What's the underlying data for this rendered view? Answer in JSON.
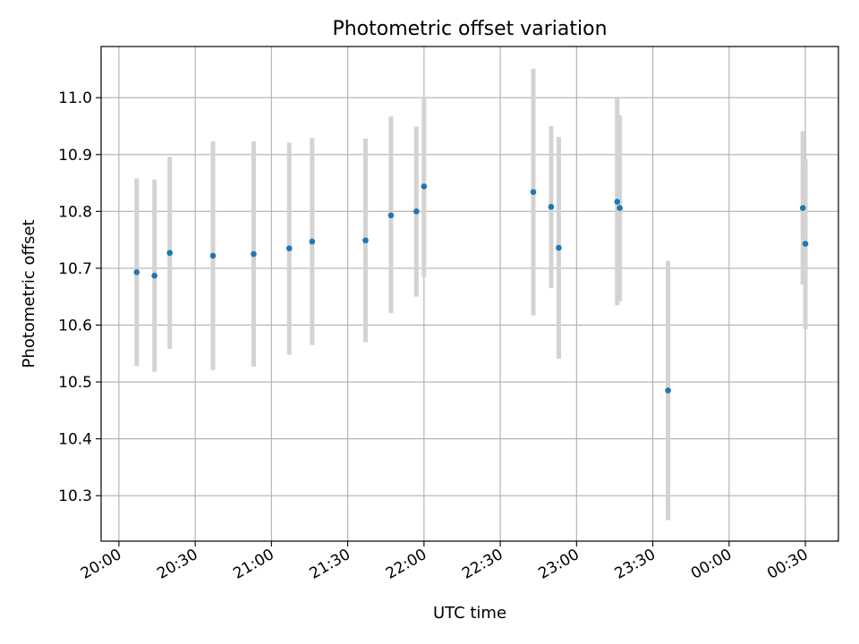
{
  "chart_data": {
    "type": "scatter",
    "title": "Photometric offset variation",
    "xlabel": "UTC time",
    "ylabel": "Photometric offset",
    "x_ticks": [
      "20:00",
      "20:30",
      "21:00",
      "21:30",
      "22:00",
      "22:30",
      "23:00",
      "23:30",
      "00:00",
      "00:30"
    ],
    "y_ticks": [
      "10.3",
      "10.4",
      "10.5",
      "10.6",
      "10.7",
      "10.8",
      "10.9",
      "11.0"
    ],
    "ylim": [
      10.22,
      11.09
    ],
    "xlim": [
      "19:53",
      "00:43"
    ],
    "grid": true,
    "colors": {
      "point": "#1f77b4",
      "errorbar": "#d3d3d3",
      "grid": "#b0b0b0"
    },
    "points": [
      {
        "time": "20:07",
        "value": 10.693,
        "err_low": 10.528,
        "err_high": 10.858
      },
      {
        "time": "20:14",
        "value": 10.687,
        "err_low": 10.518,
        "err_high": 10.856
      },
      {
        "time": "20:20",
        "value": 10.727,
        "err_low": 10.558,
        "err_high": 10.896
      },
      {
        "time": "20:37",
        "value": 10.722,
        "err_low": 10.521,
        "err_high": 10.923
      },
      {
        "time": "20:53",
        "value": 10.725,
        "err_low": 10.527,
        "err_high": 10.923
      },
      {
        "time": "21:07",
        "value": 10.735,
        "err_low": 10.548,
        "err_high": 10.921
      },
      {
        "time": "21:16",
        "value": 10.747,
        "err_low": 10.565,
        "err_high": 10.929
      },
      {
        "time": "21:37",
        "value": 10.749,
        "err_low": 10.57,
        "err_high": 10.928
      },
      {
        "time": "21:47",
        "value": 10.793,
        "err_low": 10.621,
        "err_high": 10.967
      },
      {
        "time": "21:57",
        "value": 10.8,
        "err_low": 10.65,
        "err_high": 10.949
      },
      {
        "time": "22:00",
        "value": 10.844,
        "err_low": 10.685,
        "err_high": 11.001
      },
      {
        "time": "22:43",
        "value": 10.834,
        "err_low": 10.617,
        "err_high": 11.051
      },
      {
        "time": "22:50",
        "value": 10.808,
        "err_low": 10.665,
        "err_high": 10.95
      },
      {
        "time": "22:53",
        "value": 10.736,
        "err_low": 10.541,
        "err_high": 10.931
      },
      {
        "time": "23:16",
        "value": 10.817,
        "err_low": 10.635,
        "err_high": 10.999
      },
      {
        "time": "23:17",
        "value": 10.806,
        "err_low": 10.642,
        "err_high": 10.969
      },
      {
        "time": "23:36",
        "value": 10.485,
        "err_low": 10.257,
        "err_high": 10.713
      },
      {
        "time": "00:29",
        "value": 10.806,
        "err_low": 10.671,
        "err_high": 10.941
      },
      {
        "time": "00:30",
        "value": 10.743,
        "err_low": 10.593,
        "err_high": 10.892
      }
    ]
  }
}
